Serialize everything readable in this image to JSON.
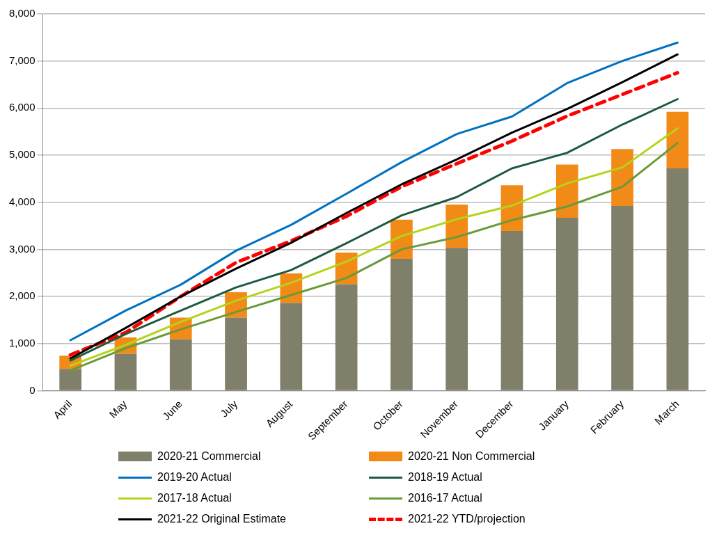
{
  "chart_data": {
    "type": "bar",
    "stacked": true,
    "categories": [
      "April",
      "May",
      "June",
      "July",
      "August",
      "September",
      "October",
      "November",
      "December",
      "January",
      "February",
      "March"
    ],
    "ylim": [
      0,
      8000
    ],
    "yticks": [
      {
        "value": 0,
        "label": "0"
      },
      {
        "value": 1000,
        "label": "1,000"
      },
      {
        "value": 2000,
        "label": "2,000"
      },
      {
        "value": 3000,
        "label": "3,000"
      },
      {
        "value": 4000,
        "label": "4,000"
      },
      {
        "value": 5000,
        "label": "5,000"
      },
      {
        "value": 6000,
        "label": "6,000"
      },
      {
        "value": 7000,
        "label": "7,000"
      },
      {
        "value": 8000,
        "label": "8,000"
      }
    ],
    "grid": "y",
    "legend": "bottom",
    "series": [
      {
        "name": "2020-21 Commercial",
        "color": "#7f7f6a",
        "values": [
          460,
          780,
          1090,
          1550,
          1860,
          2260,
          2800,
          3030,
          3390,
          3670,
          3920,
          4720
        ]
      },
      {
        "name": "2020-21 Non Commercial",
        "color": "#f28a17",
        "values": [
          280,
          350,
          460,
          540,
          630,
          670,
          830,
          920,
          970,
          1130,
          1210,
          1200
        ]
      },
      {
        "name": "2019-20 Actual",
        "type": "line",
        "color": "#0070c0",
        "values": [
          1070,
          1700,
          2250,
          2970,
          3520,
          4180,
          4850,
          5450,
          5820,
          6530,
          7000,
          7390
        ]
      },
      {
        "name": "2018-19 Actual",
        "type": "line",
        "color": "#1e5a3e",
        "values": [
          640,
          1200,
          1700,
          2190,
          2560,
          3130,
          3720,
          4110,
          4720,
          5050,
          5650,
          6190
        ]
      },
      {
        "name": "2017-18 Actual",
        "type": "line",
        "color": "#b5d31a",
        "values": [
          530,
          970,
          1460,
          1910,
          2290,
          2740,
          3280,
          3640,
          3930,
          4400,
          4740,
          5570
        ]
      },
      {
        "name": "2016-17 Actual",
        "type": "line",
        "color": "#6a9a3a",
        "values": [
          430,
          900,
          1300,
          1670,
          2030,
          2390,
          3000,
          3260,
          3620,
          3910,
          4330,
          5260
        ]
      },
      {
        "name": "2021-22 Original Estimate",
        "type": "line",
        "color": "#000000",
        "values": [
          680,
          1330,
          2000,
          2590,
          3140,
          3770,
          4380,
          4910,
          5480,
          5980,
          6550,
          7140
        ]
      },
      {
        "name": "2021-22 YTD/projection",
        "type": "line",
        "color": "#ff0000",
        "line_style": "dashed",
        "values": [
          760,
          1230,
          2000,
          2720,
          3180,
          3700,
          4330,
          4820,
          5300,
          5830,
          6290,
          6750
        ]
      }
    ]
  }
}
